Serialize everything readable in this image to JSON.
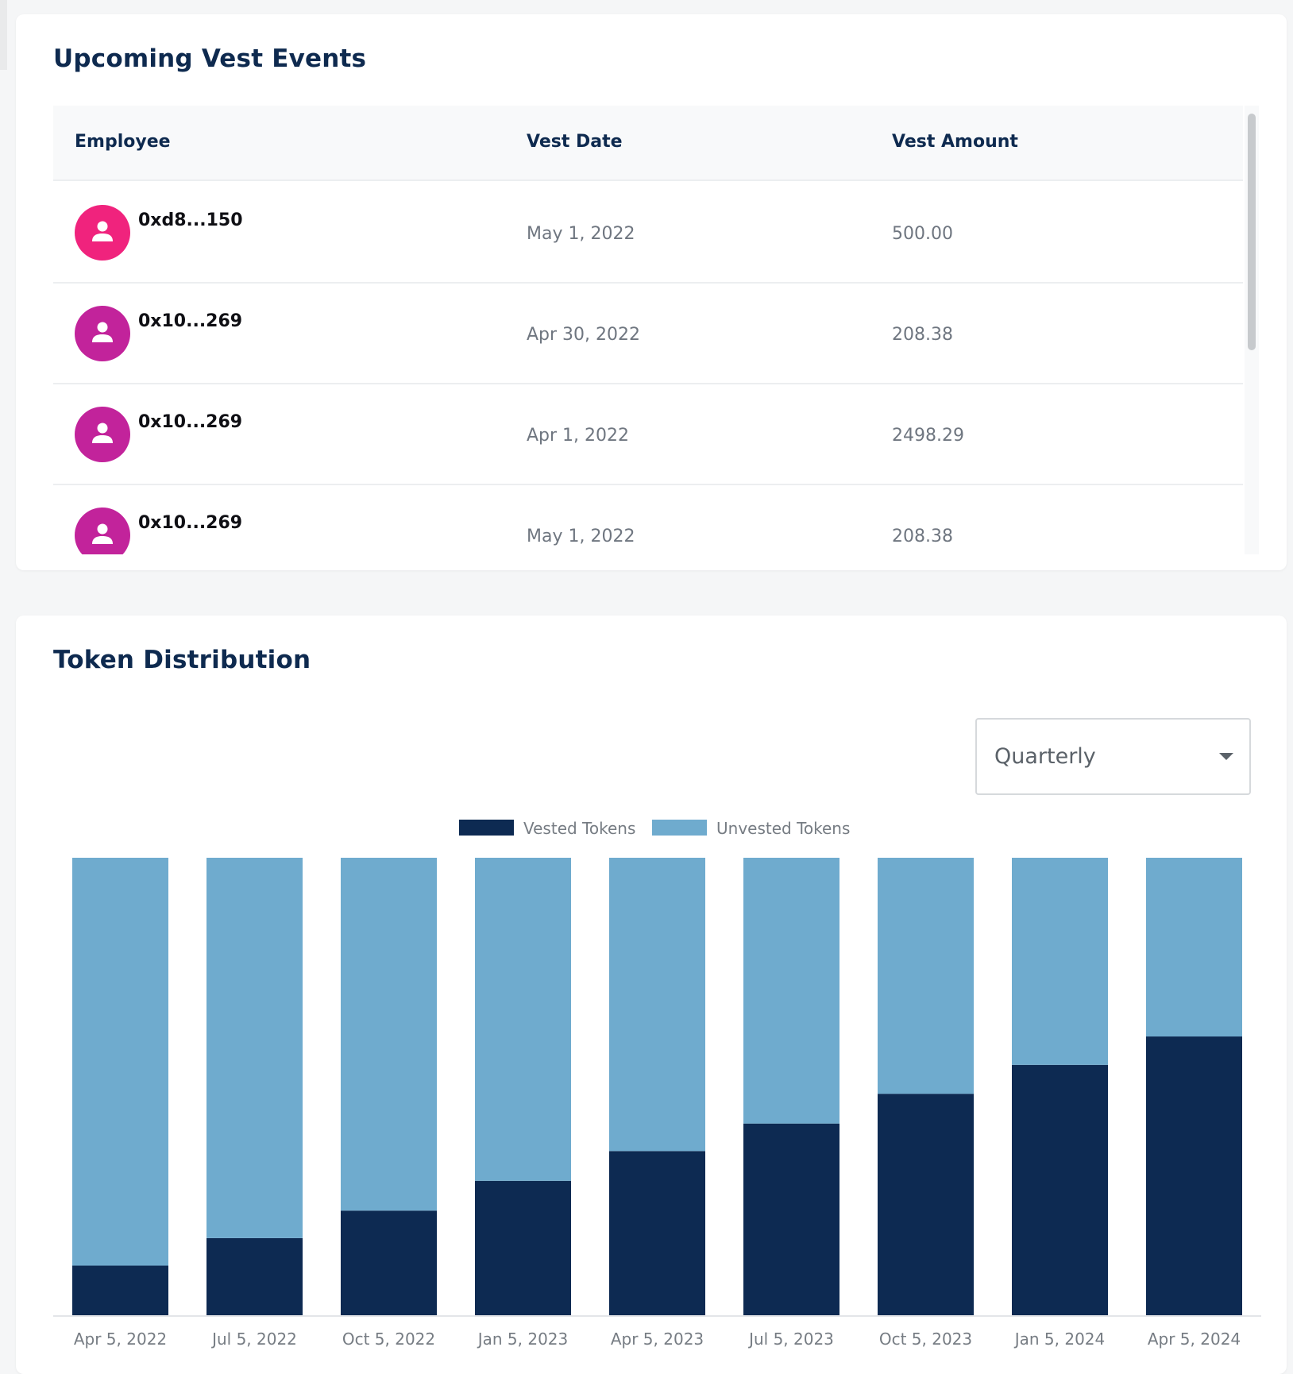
{
  "vest_events": {
    "title": "Upcoming Vest Events",
    "columns": [
      "Employee",
      "Vest Date",
      "Vest Amount"
    ],
    "rows": [
      {
        "address": "0xd8...150",
        "date": "May 1, 2022",
        "amount": "500.00",
        "avatar_color": "#f0237d"
      },
      {
        "address": "0x10...269",
        "date": "Apr 30, 2022",
        "amount": "208.38",
        "avatar_color": "#c2239b"
      },
      {
        "address": "0x10...269",
        "date": "Apr 1, 2022",
        "amount": "2498.29",
        "avatar_color": "#c2239b"
      },
      {
        "address": "0x10...269",
        "date": "May 1, 2022",
        "amount": "208.38",
        "avatar_color": "#c2239b"
      }
    ],
    "avatar_icon": "person-icon"
  },
  "token_distribution": {
    "title": "Token Distribution",
    "period_select": {
      "value": "Quarterly",
      "icon": "caret-down-icon"
    }
  },
  "chart_data": {
    "type": "bar",
    "stacked": true,
    "normalized": true,
    "categories": [
      "Apr 5, 2022",
      "Jul 5, 2022",
      "Oct 5, 2022",
      "Jan 5, 2023",
      "Apr 5, 2023",
      "Jul 5, 2023",
      "Oct 5, 2023",
      "Jan 5, 2024",
      "Apr 5, 2024"
    ],
    "series": [
      {
        "name": "Vested Tokens",
        "color": "#0d2a52",
        "values": [
          0.11,
          0.17,
          0.23,
          0.295,
          0.36,
          0.42,
          0.485,
          0.548,
          0.61
        ]
      },
      {
        "name": "Unvested Tokens",
        "color": "#6fabce",
        "values": [
          0.89,
          0.83,
          0.77,
          0.705,
          0.64,
          0.58,
          0.515,
          0.452,
          0.39
        ]
      }
    ],
    "ylim": [
      0,
      1
    ],
    "legend": "top-center",
    "grid": false
  }
}
